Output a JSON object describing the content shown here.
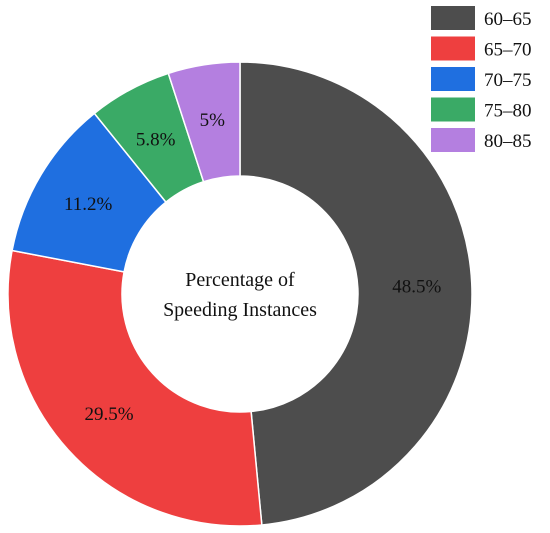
{
  "chart_data": {
    "type": "pie",
    "variant": "donut",
    "center_label": [
      "Percentage of",
      "Speeding Instances"
    ],
    "slices": [
      {
        "category": "60–65",
        "value": 48.5,
        "label": "48.5%",
        "color": "#4d4d4d"
      },
      {
        "category": "65–70",
        "value": 29.5,
        "label": "29.5%",
        "color": "#ee3f3f"
      },
      {
        "category": "70–75",
        "value": 11.2,
        "label": "11.2%",
        "color": "#1f6fe0"
      },
      {
        "category": "75–80",
        "value": 5.8,
        "label": "5.8%",
        "color": "#3aaa66"
      },
      {
        "category": "80–85",
        "value": 5.0,
        "label": "5%",
        "color": "#b47fe0"
      }
    ],
    "legend": {
      "placement": "top-right",
      "entries": [
        "60–65",
        "65–70",
        "70–75",
        "75–80",
        "80–85"
      ]
    }
  }
}
